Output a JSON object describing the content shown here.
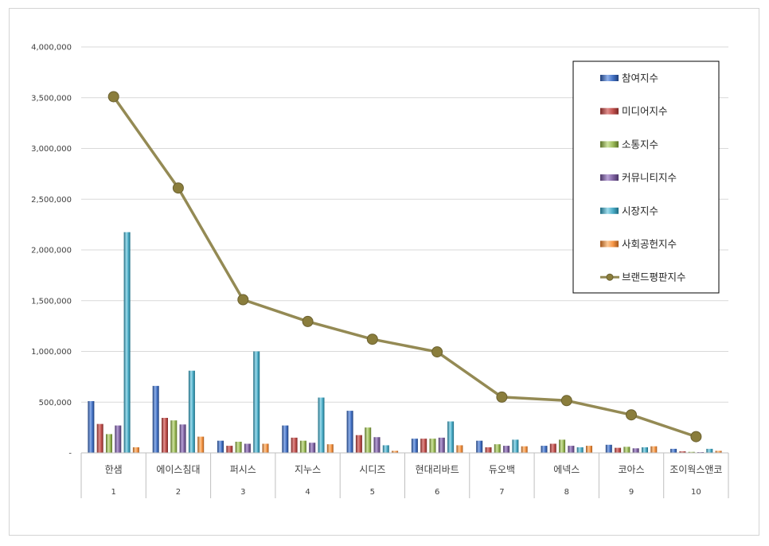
{
  "chart_data": {
    "type": "bar",
    "y_tick_labels": [
      "-",
      "500,000",
      "1,000,000",
      "1,500,000",
      "2,000,000",
      "2,500,000",
      "3,000,000",
      "3,500,000",
      "4,000,000"
    ],
    "ylim": [
      0,
      4000000
    ],
    "grid": true,
    "legend_position": "top-right",
    "categories": [
      {
        "name": "한샘",
        "rank": "1"
      },
      {
        "name": "에이스침대",
        "rank": "2"
      },
      {
        "name": "퍼시스",
        "rank": "3"
      },
      {
        "name": "지누스",
        "rank": "4"
      },
      {
        "name": "시디즈",
        "rank": "5"
      },
      {
        "name": "현대리바트",
        "rank": "6"
      },
      {
        "name": "듀오백",
        "rank": "7"
      },
      {
        "name": "에넥스",
        "rank": "8"
      },
      {
        "name": "코아스",
        "rank": "9"
      },
      {
        "name": "조이웍스앤코",
        "rank": "10"
      }
    ],
    "series": [
      {
        "name": "참여지수",
        "kind": "bar",
        "color": "#4472c4",
        "light": "#8fb0ea",
        "dark": "#1f3f7a",
        "values": [
          510000,
          660000,
          120000,
          270000,
          415000,
          140000,
          120000,
          70000,
          80000,
          40000
        ]
      },
      {
        "name": "미디어지수",
        "kind": "bar",
        "color": "#c0504d",
        "light": "#e08e8c",
        "dark": "#7a2826",
        "values": [
          285000,
          345000,
          70000,
          150000,
          175000,
          140000,
          55000,
          90000,
          50000,
          15000
        ]
      },
      {
        "name": "소통지수",
        "kind": "bar",
        "color": "#9bbb59",
        "light": "#cfe3a0",
        "dark": "#5a7226",
        "values": [
          185000,
          320000,
          110000,
          120000,
          250000,
          140000,
          85000,
          130000,
          60000,
          10000
        ]
      },
      {
        "name": "커뮤니티지수",
        "kind": "bar",
        "color": "#8064a2",
        "light": "#b8a2d6",
        "dark": "#4a3566",
        "values": [
          270000,
          280000,
          90000,
          100000,
          155000,
          150000,
          70000,
          70000,
          45000,
          5000
        ]
      },
      {
        "name": "시장지수",
        "kind": "bar",
        "color": "#4bacc6",
        "light": "#9fdcec",
        "dark": "#1d6a80",
        "values": [
          2175000,
          810000,
          1000000,
          545000,
          75000,
          310000,
          130000,
          55000,
          55000,
          40000
        ]
      },
      {
        "name": "사회공헌지수",
        "kind": "bar",
        "color": "#f79646",
        "light": "#fcc996",
        "dark": "#a3561a",
        "values": [
          55000,
          160000,
          90000,
          85000,
          20000,
          75000,
          65000,
          70000,
          65000,
          20000
        ]
      },
      {
        "name": "브랜드평판지수",
        "kind": "line",
        "color": "#948a54",
        "marker": "#8a7d3c",
        "values": [
          3510000,
          2610000,
          1510000,
          1295000,
          1120000,
          995000,
          550000,
          515000,
          375000,
          160000
        ]
      }
    ]
  }
}
